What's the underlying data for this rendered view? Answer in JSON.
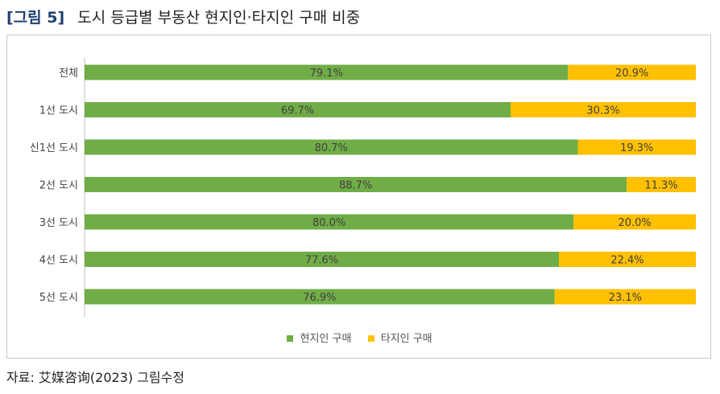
{
  "figure": {
    "label": "[그림 5]",
    "title": "도시 등급별 부동산 현지인·타지인 구매 비중"
  },
  "source": "자료: 艾媒咨询(2023) 그림수정",
  "colors": {
    "local": "#70ad47",
    "outside": "#ffc000"
  },
  "chart_data": {
    "type": "bar",
    "orientation": "horizontal",
    "stacked": true,
    "categories": [
      "전체",
      "1선 도시",
      "신1선 도시",
      "2선 도시",
      "3선 도시",
      "4선 도시",
      "5선 도시"
    ],
    "series": [
      {
        "name": "현지인 구매",
        "values": [
          79.1,
          69.7,
          80.7,
          88.7,
          80.0,
          77.6,
          76.9
        ],
        "labels": [
          "79.1%",
          "69.7%",
          "80.7%",
          "88.7%",
          "80.0%",
          "77.6%",
          "76.9%"
        ]
      },
      {
        "name": "타지인 구매",
        "values": [
          20.9,
          30.3,
          19.3,
          11.3,
          20.0,
          22.4,
          23.1
        ],
        "labels": [
          "20.9%",
          "30.3%",
          "19.3%",
          "11.3%",
          "20.0%",
          "22.4%",
          "23.1%"
        ]
      }
    ],
    "xlim": [
      0,
      100
    ],
    "grid": false,
    "legend": "bottom"
  }
}
